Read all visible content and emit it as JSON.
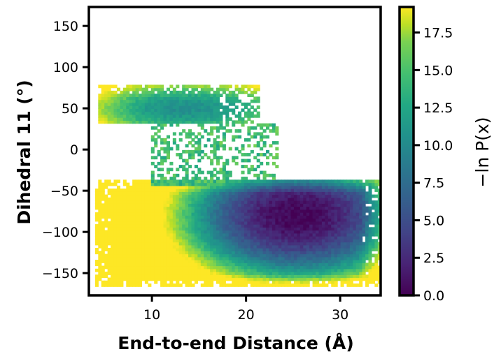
{
  "chart_data": {
    "type": "heatmap",
    "xlabel": "End-to-end Distance (Å)",
    "ylabel": "Dihedral 11 (°)",
    "colorbar_label": "−ln P(x)",
    "colormap": "viridis",
    "xlim": [
      3.3,
      34.3
    ],
    "ylim": [
      -177,
      173
    ],
    "clim": [
      0,
      19.2
    ],
    "x_ticks": [
      10,
      20,
      30
    ],
    "y_ticks": [
      -150,
      -100,
      -50,
      0,
      50,
      100,
      150
    ],
    "colorbar_ticks": [
      "0.0",
      "2.5",
      "5.0",
      "7.5",
      "10.0",
      "12.5",
      "15.0",
      "17.5"
    ],
    "colorbar_tick_values": [
      0,
      2.5,
      5,
      7.5,
      10,
      12.5,
      15,
      17.5
    ],
    "grid": false,
    "bin_size": {
      "x": 0.33,
      "y": 3.6
    },
    "regions": [
      {
        "name": "main basin",
        "x_range": [
          4,
          34
        ],
        "y_range": [
          -165,
          -38
        ],
        "min_value": 0.2,
        "min_at": {
          "x": 25.5,
          "y": -80
        }
      },
      {
        "name": "upper basin",
        "x_range": [
          4,
          21
        ],
        "y_range": [
          35,
          75
        ],
        "min_value": 9.5,
        "min_at": {
          "x": 14,
          "y": 50
        }
      },
      {
        "name": "connecting bridge",
        "x_range": [
          10,
          23
        ],
        "y_range": [
          -40,
          20
        ],
        "typical_value": 12
      }
    ],
    "colors": {
      "viridis_low": "#440154",
      "viridis_mid": "#21918c",
      "viridis_high": "#fde725"
    }
  }
}
